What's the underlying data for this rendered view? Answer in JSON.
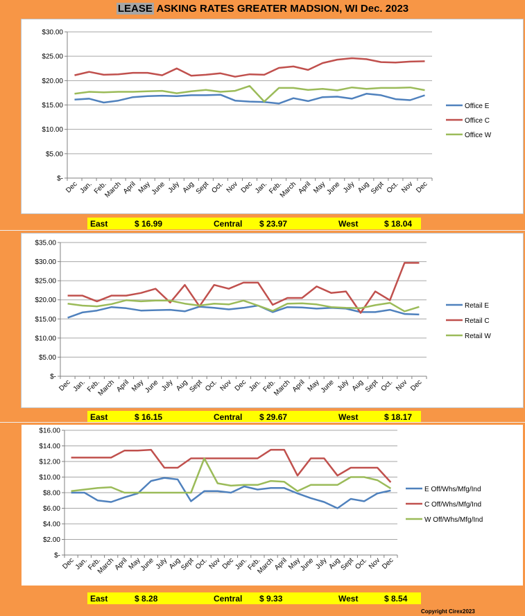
{
  "title": {
    "highlight": "LEASE",
    "rest": " ASKING RATES GREATER MADSION, WI  Dec. 2023"
  },
  "copyright": "Copyright Cirex2023",
  "chart_data": [
    {
      "type": "line",
      "categories": [
        "Dec",
        "Jan.",
        "Feb.",
        "March",
        "April",
        "May",
        "June",
        "July",
        "Aug",
        "Sept",
        "Oct.",
        "Nov",
        "Dec",
        "Jan.",
        "Feb.",
        "March",
        "April",
        "May",
        "June",
        "July",
        "Aug",
        "Sept",
        "Oct.",
        "Nov",
        "Dec"
      ],
      "ylim": [
        0,
        30
      ],
      "yticks": [
        0,
        5,
        10,
        15,
        20,
        25,
        30
      ],
      "ytick_labels": [
        "$-",
        "$5.00",
        "$10.00",
        "$15.00",
        "$20.00",
        "$25.00",
        "$30.00"
      ],
      "series": [
        {
          "name": "Office E",
          "color": "#4F81BD",
          "values": [
            16.1,
            16.3,
            15.5,
            15.9,
            16.6,
            16.8,
            16.9,
            16.8,
            17.0,
            17.0,
            17.1,
            15.9,
            15.7,
            15.6,
            15.3,
            16.4,
            15.8,
            16.6,
            16.7,
            16.3,
            17.3,
            17.0,
            16.2,
            16.0,
            16.99
          ]
        },
        {
          "name": "Office C",
          "color": "#C0504D",
          "values": [
            21.1,
            21.8,
            21.2,
            21.3,
            21.6,
            21.6,
            21.1,
            22.5,
            21.0,
            21.2,
            21.5,
            20.8,
            21.3,
            21.2,
            22.6,
            22.9,
            22.2,
            23.6,
            24.3,
            24.6,
            24.4,
            23.8,
            23.7,
            23.9,
            23.97
          ]
        },
        {
          "name": "Office W",
          "color": "#9BBB59",
          "values": [
            17.3,
            17.7,
            17.6,
            17.7,
            17.7,
            17.8,
            17.9,
            17.4,
            17.8,
            18.1,
            17.7,
            17.9,
            18.9,
            15.7,
            18.5,
            18.5,
            18.1,
            18.3,
            18.0,
            18.6,
            18.3,
            18.5,
            18.5,
            18.6,
            18.04
          ]
        }
      ],
      "summary": {
        "east_label": "East",
        "east_value": "$   16.99",
        "central_label": "Central",
        "central_value": "$   23.97",
        "west_label": "West",
        "west_value": "$   18.04"
      }
    },
    {
      "type": "line",
      "categories": [
        "Dec",
        "Jan.",
        "Feb.",
        "March",
        "April",
        "May",
        "June",
        "July",
        "Aug",
        "Sept",
        "Oct.",
        "Nov",
        "Dec",
        "Jan.",
        "Feb.",
        "March",
        "April",
        "May",
        "June",
        "July",
        "Aug",
        "Sept",
        "Oct.",
        "Nov",
        "Dec"
      ],
      "ylim": [
        0,
        35
      ],
      "yticks": [
        0,
        5,
        10,
        15,
        20,
        25,
        30,
        35
      ],
      "ytick_labels": [
        "$-",
        "$5.00",
        "$10.00",
        "$15.00",
        "$20.00",
        "$25.00",
        "$30.00",
        "$35.00"
      ],
      "series": [
        {
          "name": "Retail E",
          "color": "#4F81BD",
          "values": [
            15.3,
            16.7,
            17.2,
            18.1,
            17.8,
            17.2,
            17.3,
            17.4,
            17.0,
            18.2,
            17.9,
            17.5,
            17.9,
            18.5,
            16.8,
            18.1,
            18.0,
            17.7,
            17.9,
            17.7,
            16.8,
            16.8,
            17.4,
            16.3,
            16.15
          ]
        },
        {
          "name": "Retail C",
          "color": "#C0504D",
          "values": [
            21.1,
            21.1,
            19.6,
            21.1,
            21.1,
            21.8,
            22.9,
            19.3,
            23.9,
            18.3,
            23.9,
            22.9,
            24.5,
            24.5,
            18.7,
            20.5,
            20.5,
            23.5,
            21.8,
            22.2,
            16.6,
            22.2,
            19.9,
            29.67,
            29.67
          ]
        },
        {
          "name": "Retail W",
          "color": "#9BBB59",
          "values": [
            19.0,
            18.5,
            18.3,
            18.9,
            19.9,
            19.6,
            19.8,
            19.8,
            19.0,
            18.5,
            19.0,
            18.8,
            19.8,
            18.5,
            17.1,
            19.0,
            19.1,
            18.8,
            18.1,
            17.9,
            17.8,
            18.6,
            19.2,
            17.0,
            18.17
          ]
        }
      ],
      "summary": {
        "east_label": "East",
        "east_value": "$   16.15",
        "central_label": "Central",
        "central_value": "$   29.67",
        "west_label": "West",
        "west_value": "$   18.17"
      }
    },
    {
      "type": "line",
      "categories": [
        "Dec",
        "Jan.",
        "Feb.",
        "March",
        "April",
        "May",
        "June",
        "July",
        "Aug",
        "Sept",
        "Oct.",
        "Nov",
        "Dec",
        "Jan.",
        "Feb.",
        "March",
        "April",
        "May",
        "June",
        "July",
        "Aug",
        "Sept",
        "Oct.",
        "Nov",
        "Dec"
      ],
      "ylim": [
        0,
        16
      ],
      "yticks": [
        0,
        2,
        4,
        6,
        8,
        10,
        12,
        14,
        16
      ],
      "ytick_labels": [
        "$-",
        "$2.00",
        "$4.00",
        "$6.00",
        "$8.00",
        "$10.00",
        "$12.00",
        "$14.00",
        "$16.00"
      ],
      "series": [
        {
          "name": "E Off/Whs/Mfg/Ind",
          "color": "#4F81BD",
          "values": [
            8.0,
            8.0,
            7.0,
            6.8,
            7.4,
            7.9,
            9.5,
            9.9,
            9.7,
            6.9,
            8.2,
            8.2,
            8.0,
            8.8,
            8.4,
            8.6,
            8.6,
            7.9,
            7.3,
            6.8,
            6.0,
            7.2,
            6.9,
            7.9,
            8.28
          ]
        },
        {
          "name": "C Off/Whs/Mfg/Ind",
          "color": "#C0504D",
          "values": [
            12.5,
            12.5,
            12.5,
            12.5,
            13.4,
            13.4,
            13.5,
            11.2,
            11.2,
            12.4,
            12.4,
            12.4,
            12.4,
            12.4,
            12.4,
            13.5,
            13.5,
            10.2,
            12.4,
            12.4,
            10.2,
            11.2,
            11.2,
            11.2,
            9.33
          ]
        },
        {
          "name": "W Off/Whs/Mfg/Ind",
          "color": "#9BBB59",
          "values": [
            8.2,
            8.4,
            8.6,
            8.7,
            8.0,
            8.0,
            8.0,
            8.0,
            8.0,
            8.0,
            12.4,
            9.2,
            8.9,
            9.0,
            9.0,
            9.5,
            9.4,
            8.2,
            9.0,
            9.0,
            9.0,
            10.0,
            10.0,
            9.6,
            8.54
          ]
        }
      ],
      "summary": {
        "east_label": "East",
        "east_value": "$   8.28",
        "central_label": "Central",
        "central_value": "$   9.33",
        "west_label": "West",
        "west_value": "$   8.54"
      }
    }
  ]
}
